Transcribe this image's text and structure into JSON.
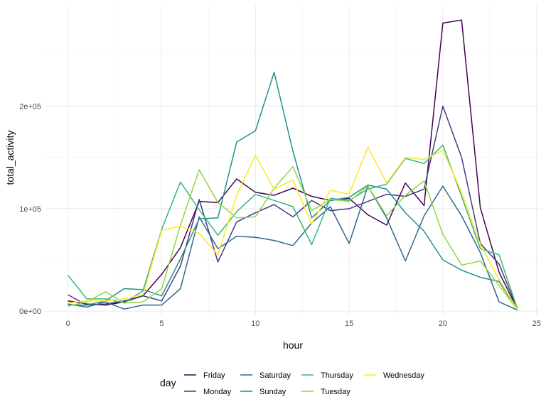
{
  "chart_data": {
    "type": "line",
    "xlabel": "hour",
    "ylabel": "total_activity",
    "xlim": [
      -1.2,
      25.2
    ],
    "ylim": [
      -4000,
      298000
    ],
    "x_ticks": [
      0,
      5,
      10,
      15,
      20,
      25
    ],
    "x_tick_labels": [
      "0",
      "5",
      "10",
      "15",
      "20",
      "25"
    ],
    "y_ticks": [
      0,
      100000,
      200000
    ],
    "y_tick_labels": [
      "0e+00",
      "1e+05",
      "2e+05"
    ],
    "grid": true,
    "legend": {
      "title": "day",
      "position": "bottom",
      "entries": [
        {
          "label": "Friday",
          "color": "#440154"
        },
        {
          "label": "Saturday",
          "color": "#31688e"
        },
        {
          "label": "Thursday",
          "color": "#35b779"
        },
        {
          "label": "Wednesday",
          "color": "#fde725"
        },
        {
          "label": "Monday",
          "color": "#443983"
        },
        {
          "label": "Sunday",
          "color": "#21908c"
        },
        {
          "label": "Tuesday",
          "color": "#8fd744"
        }
      ]
    },
    "x": [
      0,
      1,
      2,
      3,
      4,
      5,
      6,
      7,
      8,
      9,
      10,
      11,
      12,
      13,
      14,
      15,
      16,
      17,
      18,
      19,
      20,
      21,
      22,
      23,
      24
    ],
    "series": [
      {
        "name": "Friday",
        "color": "#440154",
        "values": [
          10000,
          7000,
          6000,
          9000,
          15000,
          36000,
          62000,
          107000,
          106000,
          129000,
          116000,
          113000,
          120000,
          112000,
          108000,
          110000,
          94000,
          84000,
          125000,
          103000,
          281000,
          284000,
          101000,
          38000,
          1000
        ]
      },
      {
        "name": "Monday",
        "color": "#443983",
        "values": [
          16000,
          6000,
          7000,
          10000,
          15000,
          10000,
          44000,
          109000,
          48000,
          87000,
          96000,
          104000,
          92000,
          108000,
          98000,
          100000,
          107000,
          114000,
          112000,
          119000,
          200000,
          150000,
          66000,
          46000,
          1000
        ]
      },
      {
        "name": "Saturday",
        "color": "#31688e",
        "values": [
          7000,
          4000,
          9000,
          2000,
          6000,
          6000,
          22000,
          92000,
          61000,
          73000,
          72000,
          69000,
          64000,
          86000,
          102000,
          66000,
          122000,
          91000,
          49000,
          93000,
          122000,
          93000,
          57000,
          9000,
          1000
        ]
      },
      {
        "name": "Sunday",
        "color": "#21908c",
        "values": [
          6000,
          6000,
          10000,
          22000,
          21000,
          15000,
          51000,
          90000,
          91000,
          165000,
          176000,
          233000,
          156000,
          91000,
          108000,
          111000,
          123000,
          119000,
          96000,
          78000,
          50000,
          40000,
          33000,
          29000,
          1000
        ]
      },
      {
        "name": "Thursday",
        "color": "#35b779",
        "values": [
          35000,
          12000,
          12000,
          8000,
          20000,
          80000,
          126000,
          99000,
          74000,
          97000,
          114000,
          108000,
          102000,
          65000,
          110000,
          108000,
          119000,
          124000,
          149000,
          144000,
          162000,
          112000,
          61000,
          55000,
          1000
        ]
      },
      {
        "name": "Tuesday",
        "color": "#8fd744",
        "values": [
          5000,
          9000,
          19000,
          8000,
          9000,
          22000,
          84000,
          138000,
          106000,
          91000,
          92000,
          120000,
          141000,
          98000,
          109000,
          107000,
          122000,
          93000,
          113000,
          127000,
          75000,
          45000,
          49000,
          25000,
          1000
        ]
      },
      {
        "name": "Wednesday",
        "color": "#fde725",
        "values": [
          8000,
          10000,
          10000,
          12000,
          16000,
          79000,
          83000,
          76000,
          55000,
          113000,
          152000,
          119000,
          128000,
          85000,
          118000,
          114000,
          160000,
          125000,
          150000,
          148000,
          157000,
          116000,
          65000,
          31000,
          1000
        ]
      }
    ]
  }
}
